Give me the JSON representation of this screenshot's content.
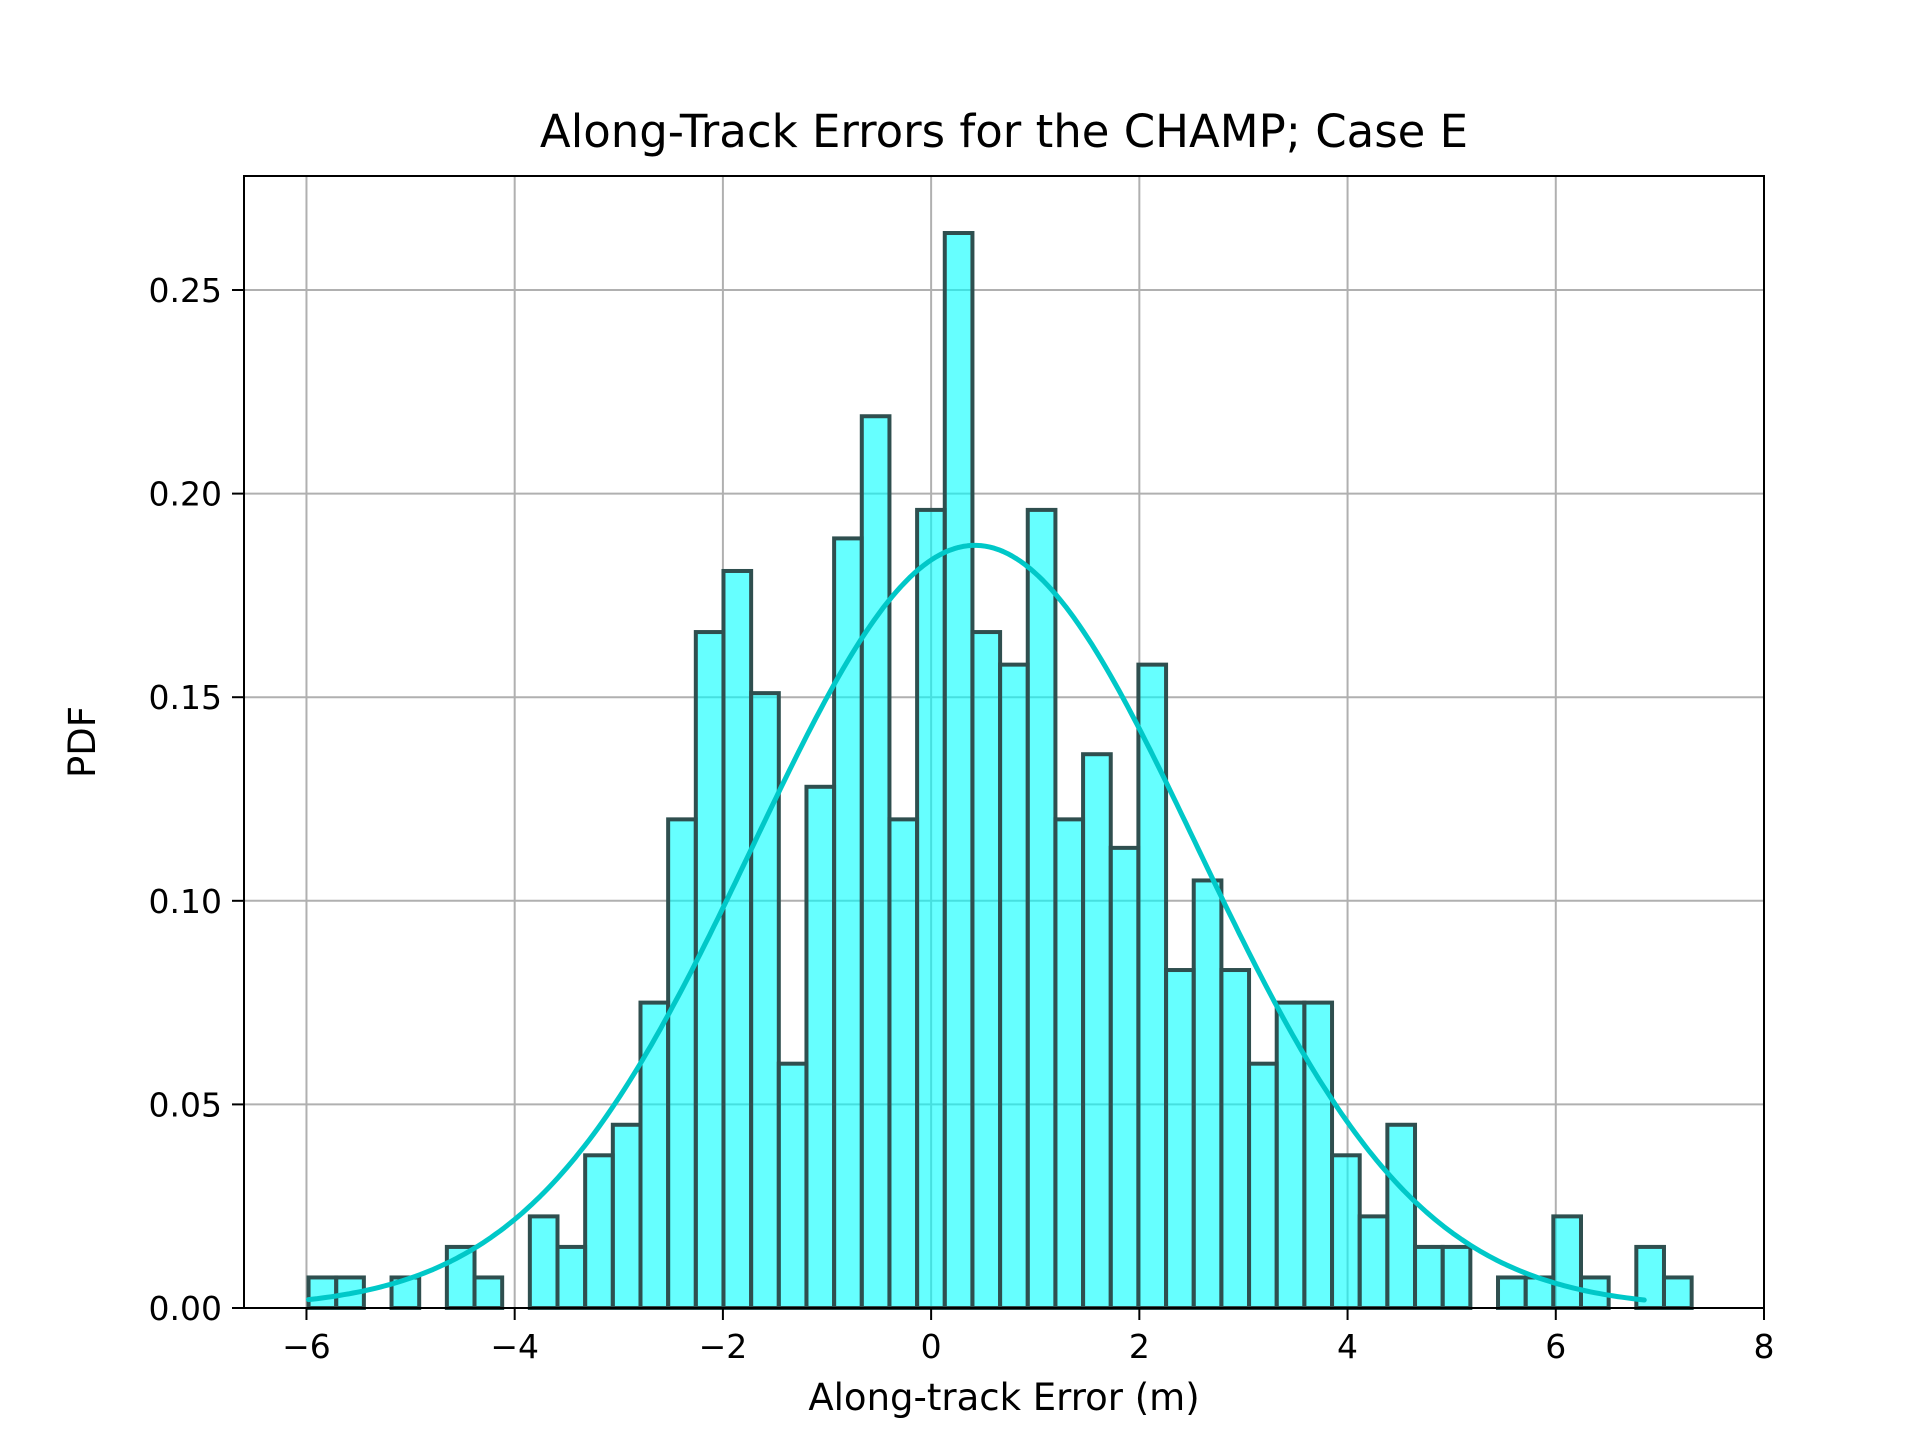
{
  "chart_data": {
    "type": "bar",
    "title": "Along-Track Errors for the CHAMP; Case E",
    "xlabel": "Along-track Error (m)",
    "ylabel": "PDF",
    "xlim": [
      -6.6,
      8.0
    ],
    "ylim": [
      0,
      0.278
    ],
    "xticks": [
      -6,
      -4,
      -2,
      0,
      2,
      4,
      6,
      8
    ],
    "xtick_labels": [
      "−6",
      "−4",
      "−2",
      "0",
      "2",
      "4",
      "6",
      "8"
    ],
    "yticks": [
      0.0,
      0.05,
      0.1,
      0.15,
      0.2,
      0.25
    ],
    "ytick_labels": [
      "0.00",
      "0.05",
      "0.10",
      "0.15",
      "0.20",
      "0.25"
    ],
    "grid": true,
    "bin_start": -5.98,
    "bin_width": 0.2657,
    "values": [
      0.0075,
      0.0075,
      0,
      0.0075,
      0,
      0.015,
      0.0075,
      0,
      0.0225,
      0.015,
      0.0375,
      0.045,
      0.075,
      0.12,
      0.166,
      0.181,
      0.151,
      0.06,
      0.128,
      0.189,
      0.219,
      0.12,
      0.196,
      0.264,
      0.166,
      0.158,
      0.196,
      0.12,
      0.136,
      0.113,
      0.158,
      0.083,
      0.105,
      0.083,
      0.06,
      0.075,
      0.075,
      0.0375,
      0.0225,
      0.045,
      0.015,
      0.015,
      0,
      0.0075,
      0.0075,
      0.0225,
      0.0075,
      0,
      0.015,
      0.0075
    ],
    "bar_fill": "#00ffff",
    "bar_fill_opacity": 0.6,
    "bar_edge": "#2f4f4f",
    "fit_curve": {
      "type": "normal_pdf",
      "mean": 0.42,
      "std": 2.13,
      "x_range": [
        -5.98,
        6.85
      ],
      "color": "#00c8c8"
    }
  }
}
